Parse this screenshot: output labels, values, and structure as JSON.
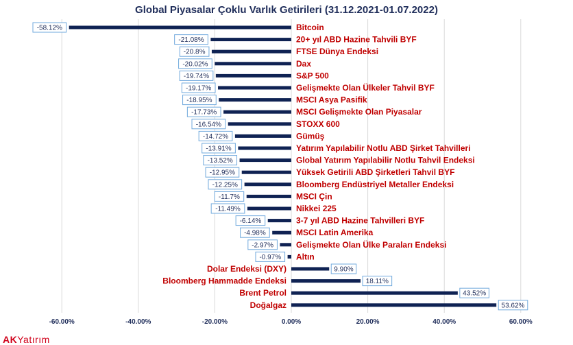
{
  "logo": {
    "ak": "AK",
    "rest": "Yatırım"
  },
  "colors": {
    "bar": "#0f2253",
    "label": "#c00000",
    "text": "#1f2d5a",
    "grid": "#d9d9d9",
    "box": "#6fa8dc"
  },
  "chart_data": {
    "type": "bar",
    "orientation": "horizontal",
    "title": "Global Piyasalar Çoklu Varlık Getirileri (31.12.2021-01.07.2022)",
    "xlabel": "",
    "ylabel": "",
    "xlim": [
      -0.6,
      0.6
    ],
    "xticks": [
      -0.6,
      -0.4,
      -0.2,
      0.0,
      0.2,
      0.4,
      0.6
    ],
    "xtick_labels": [
      "-60.00%",
      "-40.00%",
      "-20.00%",
      "0.00%",
      "20.00%",
      "40.00%",
      "60.00%"
    ],
    "grid": true,
    "categories": [
      "Bitcoin",
      "20+ yıl ABD Hazine Tahvili BYF",
      "FTSE Dünya Endeksi",
      "Dax",
      "S&P 500",
      "Gelişmekte Olan Ülkeler Tahvil BYF",
      "MSCI Asya Pasifik",
      "MSCI Gelişmekte Olan Piyasalar",
      "STOXX 600",
      "Gümüş",
      "Yatırım Yapılabilir Notlu  ABD Şirket Tahvilleri",
      "Global Yatırım Yapılabilir Notlu Tahvil Endeksi",
      "Yüksek Getirili ABD Şirketleri Tahvil BYF",
      "Bloomberg Endüstriyel Metaller Endeksi",
      "MSCI Çin",
      "Nikkei 225",
      "3-7 yıl ABD Hazine Tahvilleri BYF",
      "MSCI Latin Amerika",
      "Gelişmekte Olan Ülke Paraları Endeksi",
      "Altın",
      "Dolar Endeksi (DXY)",
      "Bloomberg Hammadde Endeksi",
      "Brent Petrol",
      "Doğalgaz"
    ],
    "values": [
      -0.5812,
      -0.2108,
      -0.208,
      -0.2002,
      -0.1974,
      -0.1917,
      -0.1895,
      -0.1773,
      -0.1654,
      -0.1472,
      -0.1391,
      -0.1352,
      -0.1295,
      -0.1225,
      -0.117,
      -0.1149,
      -0.0614,
      -0.0498,
      -0.0297,
      -0.0097,
      0.099,
      0.1811,
      0.4352,
      0.5362
    ],
    "value_labels": [
      "-58.12%",
      "-21.08%",
      "-20.8%",
      "-20.02%",
      "-19.74%",
      "-19.17%",
      "-18.95%",
      "-17.73%",
      "-16.54%",
      "-14.72%",
      "-13.91%",
      "-13.52%",
      "-12.95%",
      "-12.25%",
      "-11.7%",
      "-11.49%",
      "-6.14%",
      "-4.98%",
      "-2.97%",
      "-0.97%",
      "9.90%",
      "18.11%",
      "43.52%",
      "53.62%"
    ]
  }
}
